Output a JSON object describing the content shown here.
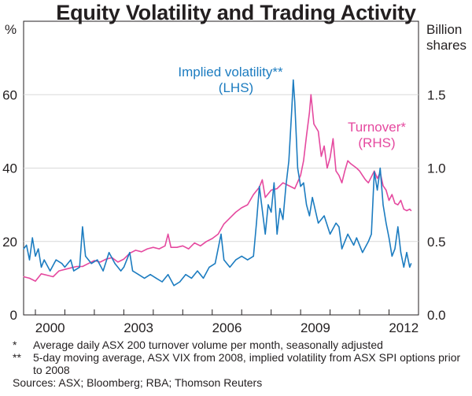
{
  "chart_data": {
    "type": "line",
    "title": "Equity Volatility and Trading Activity",
    "left_axis": {
      "unit": "%",
      "range": [
        0,
        80
      ],
      "ticks": [
        "0",
        "20",
        "40",
        "60"
      ]
    },
    "right_axis": {
      "unit_line1": "Billion",
      "unit_line2": "shares",
      "range": [
        0.0,
        2.0
      ],
      "ticks": [
        "0.0",
        "0.5",
        "1.0",
        "1.5"
      ]
    },
    "x_axis": {
      "range": [
        1999.6,
        2013.0
      ],
      "tick_labels": [
        "2000",
        "2003",
        "2006",
        "2009",
        "2012"
      ],
      "tick_years": [
        2000,
        2003,
        2006,
        2009,
        2012
      ]
    },
    "series": [
      {
        "name": "Implied volatility",
        "label_line1": "Implied volatility**",
        "label_line2": "(LHS)",
        "axis": "left",
        "color": "#1c7cc0",
        "points": [
          [
            1999.6,
            18
          ],
          [
            1999.7,
            19
          ],
          [
            1999.8,
            15
          ],
          [
            1999.9,
            21
          ],
          [
            2000.0,
            16
          ],
          [
            2000.1,
            18
          ],
          [
            2000.2,
            13
          ],
          [
            2000.3,
            15
          ],
          [
            2000.5,
            12
          ],
          [
            2000.7,
            15
          ],
          [
            2000.9,
            14
          ],
          [
            2001.0,
            13
          ],
          [
            2001.2,
            15
          ],
          [
            2001.3,
            12
          ],
          [
            2001.5,
            13
          ],
          [
            2001.6,
            24
          ],
          [
            2001.7,
            16
          ],
          [
            2001.9,
            14
          ],
          [
            2002.1,
            15
          ],
          [
            2002.3,
            12
          ],
          [
            2002.5,
            17
          ],
          [
            2002.7,
            14
          ],
          [
            2002.9,
            12
          ],
          [
            2003.0,
            13
          ],
          [
            2003.2,
            17
          ],
          [
            2003.3,
            12
          ],
          [
            2003.5,
            11
          ],
          [
            2003.7,
            10
          ],
          [
            2003.9,
            11
          ],
          [
            2004.1,
            10
          ],
          [
            2004.3,
            9
          ],
          [
            2004.5,
            11
          ],
          [
            2004.7,
            8
          ],
          [
            2004.9,
            9
          ],
          [
            2005.1,
            11
          ],
          [
            2005.3,
            10
          ],
          [
            2005.5,
            12
          ],
          [
            2005.7,
            10
          ],
          [
            2005.9,
            13
          ],
          [
            2006.1,
            14
          ],
          [
            2006.3,
            22
          ],
          [
            2006.4,
            15
          ],
          [
            2006.6,
            13
          ],
          [
            2006.8,
            15
          ],
          [
            2007.0,
            16
          ],
          [
            2007.2,
            15
          ],
          [
            2007.4,
            16
          ],
          [
            2007.5,
            25
          ],
          [
            2007.6,
            35
          ],
          [
            2007.8,
            22
          ],
          [
            2007.9,
            30
          ],
          [
            2008.0,
            28
          ],
          [
            2008.1,
            36
          ],
          [
            2008.2,
            22
          ],
          [
            2008.3,
            29
          ],
          [
            2008.4,
            26
          ],
          [
            2008.5,
            35
          ],
          [
            2008.6,
            42
          ],
          [
            2008.7,
            56
          ],
          [
            2008.75,
            64
          ],
          [
            2008.8,
            58
          ],
          [
            2008.9,
            40
          ],
          [
            2009.0,
            35
          ],
          [
            2009.1,
            36
          ],
          [
            2009.2,
            30
          ],
          [
            2009.3,
            27
          ],
          [
            2009.4,
            32
          ],
          [
            2009.6,
            25
          ],
          [
            2009.8,
            27
          ],
          [
            2010.0,
            22
          ],
          [
            2010.2,
            25
          ],
          [
            2010.3,
            24
          ],
          [
            2010.4,
            18
          ],
          [
            2010.6,
            22
          ],
          [
            2010.8,
            19
          ],
          [
            2010.9,
            21
          ],
          [
            2011.1,
            17
          ],
          [
            2011.3,
            20
          ],
          [
            2011.4,
            22
          ],
          [
            2011.5,
            39
          ],
          [
            2011.6,
            34
          ],
          [
            2011.7,
            40
          ],
          [
            2011.8,
            30
          ],
          [
            2011.9,
            25
          ],
          [
            2012.0,
            21
          ],
          [
            2012.1,
            16
          ],
          [
            2012.2,
            18
          ],
          [
            2012.3,
            24
          ],
          [
            2012.4,
            17
          ],
          [
            2012.5,
            13
          ],
          [
            2012.6,
            17
          ],
          [
            2012.7,
            13
          ],
          [
            2012.75,
            14
          ]
        ]
      },
      {
        "name": "Turnover",
        "label_line1": "Turnover*",
        "label_line2": "(RHS)",
        "axis": "right",
        "color": "#e5499f",
        "points": [
          [
            1999.6,
            0.26
          ],
          [
            1999.8,
            0.25
          ],
          [
            2000.0,
            0.23
          ],
          [
            2000.2,
            0.28
          ],
          [
            2000.4,
            0.27
          ],
          [
            2000.6,
            0.26
          ],
          [
            2000.8,
            0.3
          ],
          [
            2001.0,
            0.31
          ],
          [
            2001.2,
            0.32
          ],
          [
            2001.4,
            0.33
          ],
          [
            2001.6,
            0.33
          ],
          [
            2001.8,
            0.35
          ],
          [
            2002.0,
            0.37
          ],
          [
            2002.2,
            0.36
          ],
          [
            2002.4,
            0.38
          ],
          [
            2002.6,
            0.39
          ],
          [
            2002.8,
            0.36
          ],
          [
            2003.0,
            0.38
          ],
          [
            2003.2,
            0.42
          ],
          [
            2003.4,
            0.44
          ],
          [
            2003.6,
            0.43
          ],
          [
            2003.8,
            0.45
          ],
          [
            2004.0,
            0.46
          ],
          [
            2004.2,
            0.45
          ],
          [
            2004.4,
            0.47
          ],
          [
            2004.5,
            0.55
          ],
          [
            2004.6,
            0.46
          ],
          [
            2004.8,
            0.46
          ],
          [
            2005.0,
            0.47
          ],
          [
            2005.2,
            0.45
          ],
          [
            2005.4,
            0.49
          ],
          [
            2005.6,
            0.47
          ],
          [
            2005.8,
            0.5
          ],
          [
            2006.0,
            0.52
          ],
          [
            2006.2,
            0.55
          ],
          [
            2006.4,
            0.62
          ],
          [
            2006.6,
            0.66
          ],
          [
            2006.8,
            0.7
          ],
          [
            2007.0,
            0.73
          ],
          [
            2007.2,
            0.75
          ],
          [
            2007.4,
            0.82
          ],
          [
            2007.6,
            0.87
          ],
          [
            2007.7,
            0.92
          ],
          [
            2007.8,
            0.8
          ],
          [
            2008.0,
            0.85
          ],
          [
            2008.2,
            0.86
          ],
          [
            2008.4,
            0.9
          ],
          [
            2008.6,
            0.88
          ],
          [
            2008.8,
            0.86
          ],
          [
            2009.0,
            0.95
          ],
          [
            2009.1,
            1.05
          ],
          [
            2009.2,
            1.22
          ],
          [
            2009.3,
            1.38
          ],
          [
            2009.35,
            1.5
          ],
          [
            2009.45,
            1.3
          ],
          [
            2009.6,
            1.25
          ],
          [
            2009.7,
            1.08
          ],
          [
            2009.8,
            1.15
          ],
          [
            2009.9,
            1.0
          ],
          [
            2010.0,
            1.07
          ],
          [
            2010.1,
            1.2
          ],
          [
            2010.2,
            0.98
          ],
          [
            2010.3,
            0.95
          ],
          [
            2010.4,
            0.9
          ],
          [
            2010.5,
            0.98
          ],
          [
            2010.6,
            1.05
          ],
          [
            2010.7,
            1.03
          ],
          [
            2010.9,
            1.0
          ],
          [
            2011.0,
            0.98
          ],
          [
            2011.1,
            0.95
          ],
          [
            2011.2,
            0.92
          ],
          [
            2011.3,
            0.9
          ],
          [
            2011.5,
            0.98
          ],
          [
            2011.6,
            0.93
          ],
          [
            2011.7,
            0.97
          ],
          [
            2011.8,
            0.88
          ],
          [
            2011.9,
            0.85
          ],
          [
            2012.0,
            0.78
          ],
          [
            2012.1,
            0.82
          ],
          [
            2012.2,
            0.76
          ],
          [
            2012.3,
            0.75
          ],
          [
            2012.4,
            0.78
          ],
          [
            2012.5,
            0.72
          ],
          [
            2012.6,
            0.71
          ],
          [
            2012.7,
            0.72
          ],
          [
            2012.75,
            0.71
          ]
        ]
      }
    ]
  },
  "notes": [
    {
      "marker": "*",
      "text": "Average daily ASX 200 turnover volume per month, seasonally adjusted"
    },
    {
      "marker": "**",
      "text": "5-day moving average, ASX VIX from 2008, implied volatility from ASX SPI options prior to 2008"
    }
  ],
  "sources": "Sources: ASX; Bloomberg; RBA; Thomson Reuters",
  "colors": {
    "volatility": "#1c7cc0",
    "turnover": "#e5499f",
    "frame": "#231f20"
  }
}
